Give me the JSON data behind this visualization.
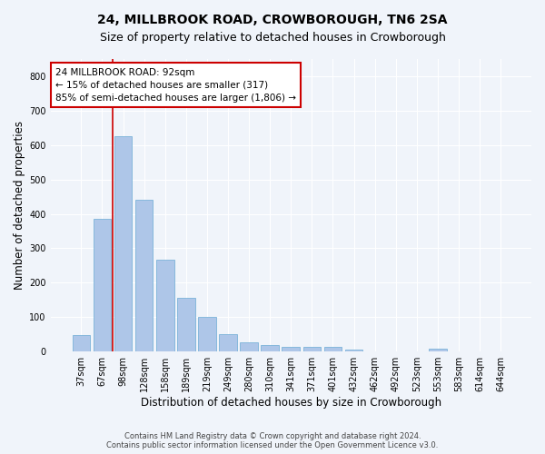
{
  "title": "24, MILLBROOK ROAD, CROWBOROUGH, TN6 2SA",
  "subtitle": "Size of property relative to detached houses in Crowborough",
  "xlabel": "Distribution of detached houses by size in Crowborough",
  "ylabel": "Number of detached properties",
  "footer_line1": "Contains HM Land Registry data © Crown copyright and database right 2024.",
  "footer_line2": "Contains public sector information licensed under the Open Government Licence v3.0.",
  "categories": [
    "37sqm",
    "67sqm",
    "98sqm",
    "128sqm",
    "158sqm",
    "189sqm",
    "219sqm",
    "249sqm",
    "280sqm",
    "310sqm",
    "341sqm",
    "371sqm",
    "401sqm",
    "432sqm",
    "462sqm",
    "492sqm",
    "523sqm",
    "553sqm",
    "583sqm",
    "614sqm",
    "644sqm"
  ],
  "values": [
    48,
    385,
    625,
    440,
    268,
    155,
    100,
    50,
    28,
    18,
    13,
    13,
    15,
    7,
    0,
    0,
    0,
    8,
    0,
    0,
    0
  ],
  "bar_color": "#aec6e8",
  "bar_edge_color": "#6aaad4",
  "ylim": [
    0,
    850
  ],
  "yticks": [
    0,
    100,
    200,
    300,
    400,
    500,
    600,
    700,
    800
  ],
  "vline_x_index": 2,
  "vline_color": "#cc0000",
  "annotation_text": "24 MILLBROOK ROAD: 92sqm\n← 15% of detached houses are smaller (317)\n85% of semi-detached houses are larger (1,806) →",
  "annotation_box_color": "#ffffff",
  "annotation_box_edge": "#cc0000",
  "background_color": "#f0f4fa",
  "grid_color": "#ffffff",
  "title_fontsize": 10,
  "subtitle_fontsize": 9,
  "xlabel_fontsize": 8.5,
  "ylabel_fontsize": 8.5,
  "annotation_fontsize": 7.5,
  "tick_fontsize": 7,
  "footer_fontsize": 6
}
